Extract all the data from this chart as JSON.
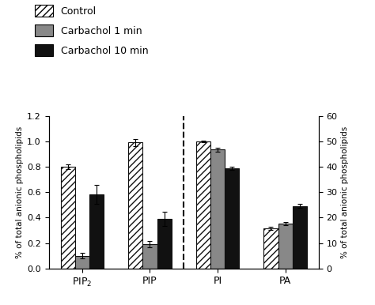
{
  "categories": [
    "PIP2",
    "PIP",
    "PI",
    "PA"
  ],
  "category_labels": [
    "PIP$_2$",
    "PIP",
    "PI",
    "PA"
  ],
  "groups": [
    "Control",
    "Carbachol 1 min",
    "Carbachol 10 min"
  ],
  "values": [
    [
      0.8,
      0.1,
      0.58
    ],
    [
      0.99,
      0.19,
      0.39
    ],
    [
      1.0,
      0.935,
      0.79
    ],
    [
      0.315,
      0.355,
      0.49
    ]
  ],
  "errors": [
    [
      0.02,
      0.02,
      0.075
    ],
    [
      0.03,
      0.025,
      0.055
    ],
    [
      0.008,
      0.015,
      0.012
    ],
    [
      0.01,
      0.012,
      0.015
    ]
  ],
  "left_ylim": [
    0,
    1.2
  ],
  "right_ylim": [
    0,
    60
  ],
  "left_yticks": [
    0,
    0.2,
    0.4,
    0.6,
    0.8,
    1.0,
    1.2
  ],
  "right_yticks": [
    0,
    10,
    20,
    30,
    40,
    50,
    60
  ],
  "left_ylabel": "% of total anionic phospholipids",
  "right_ylabel": "% of total anionic phospholipids",
  "bar_width": 0.18,
  "colors": [
    "white",
    "#888888",
    "#111111"
  ],
  "hatch": [
    "////",
    "",
    ""
  ],
  "edgecolor": "#111111",
  "legend_labels": [
    "Control",
    "Carbachol 1 min",
    "Carbachol 10 min"
  ],
  "fig_width": 4.74,
  "fig_height": 3.86,
  "dpi": 100
}
